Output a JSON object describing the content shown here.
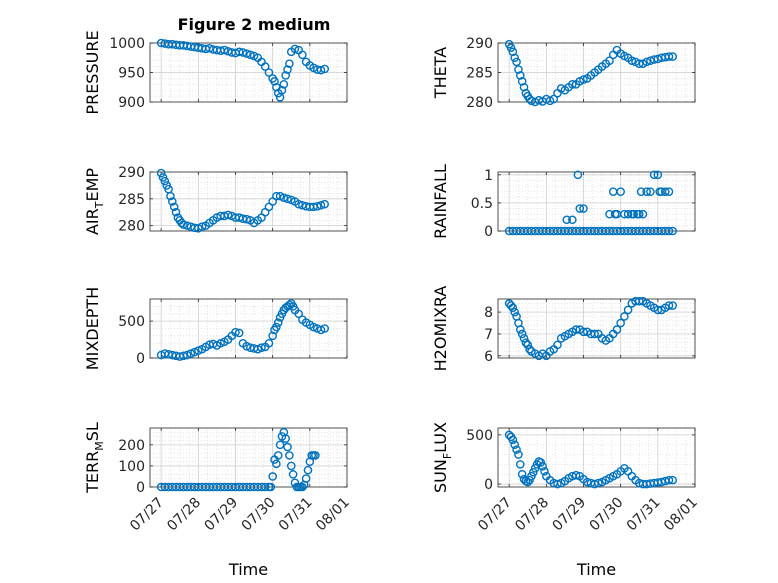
{
  "figure": {
    "title": "Figure 2 medium"
  },
  "colors": {
    "marker": "#0072bd",
    "axis": "#262626",
    "grid": "#dcdcdc"
  },
  "chart_data": [
    {
      "type": "scatter",
      "ylabel": "PRESSURE",
      "ylabel_sub": "",
      "ylabel_end": "",
      "ylim": [
        900,
        1000
      ],
      "yticks": [
        900,
        950,
        1000
      ],
      "ytick_labels": [
        "900",
        "950",
        "1000"
      ],
      "xlabel": "",
      "xticks_labeled": false,
      "x": [
        0.0,
        0.1,
        0.2,
        0.3,
        0.4,
        0.5,
        0.6,
        0.7,
        0.8,
        0.9,
        1.0,
        1.1,
        1.2,
        1.3,
        1.4,
        1.5,
        1.6,
        1.7,
        1.8,
        1.9,
        2.0,
        2.1,
        2.2,
        2.3,
        2.4,
        2.5,
        2.6,
        2.7,
        2.8,
        2.9,
        3.0,
        3.05,
        3.1,
        3.15,
        3.2,
        3.25,
        3.3,
        3.35,
        3.4,
        3.45,
        3.5,
        3.6,
        3.7,
        3.8,
        3.9,
        4.0,
        4.1,
        4.2,
        4.3,
        4.4
      ],
      "y": [
        1000,
        999,
        998,
        998,
        997,
        996,
        996,
        995,
        994,
        993,
        992,
        991,
        990,
        991,
        989,
        988,
        987,
        988,
        986,
        984,
        983,
        985,
        984,
        982,
        980,
        978,
        975,
        968,
        960,
        950,
        940,
        935,
        925,
        915,
        908,
        920,
        930,
        945,
        955,
        965,
        985,
        990,
        988,
        980,
        968,
        962,
        958,
        955,
        954,
        956
      ]
    },
    {
      "type": "scatter",
      "ylabel": "THETA",
      "ylabel_sub": "",
      "ylabel_end": "",
      "ylim": [
        280,
        290
      ],
      "yticks": [
        280,
        285,
        290
      ],
      "ytick_labels": [
        "280",
        "285",
        "290"
      ],
      "xlabel": "",
      "xticks_labeled": false,
      "x": [
        0.0,
        0.05,
        0.1,
        0.15,
        0.2,
        0.25,
        0.3,
        0.35,
        0.4,
        0.45,
        0.5,
        0.55,
        0.6,
        0.7,
        0.8,
        0.9,
        1.0,
        1.1,
        1.2,
        1.3,
        1.4,
        1.5,
        1.6,
        1.7,
        1.8,
        1.9,
        2.0,
        2.1,
        2.2,
        2.3,
        2.4,
        2.5,
        2.6,
        2.7,
        2.8,
        2.9,
        3.0,
        3.1,
        3.2,
        3.3,
        3.4,
        3.5,
        3.6,
        3.7,
        3.8,
        3.9,
        4.0,
        4.1,
        4.2,
        4.3,
        4.4
      ],
      "y": [
        289.8,
        289.2,
        288.5,
        287.5,
        286.8,
        285.5,
        284.5,
        283.5,
        282.5,
        281.5,
        281.0,
        280.5,
        280.2,
        280.0,
        280.3,
        280.1,
        280.5,
        280.2,
        280.5,
        281.5,
        282.3,
        282.0,
        282.5,
        283.0,
        283.0,
        283.5,
        283.8,
        284.0,
        284.5,
        285.0,
        285.5,
        286.0,
        286.5,
        287.0,
        288.0,
        288.8,
        288.2,
        287.8,
        287.5,
        287.0,
        286.8,
        286.5,
        286.5,
        286.8,
        287.0,
        287.2,
        287.3,
        287.5,
        287.6,
        287.7,
        287.7
      ]
    },
    {
      "type": "scatter",
      "ylabel": "AIR",
      "ylabel_sub": "T",
      "ylabel_end": "EMP",
      "ylim": [
        279,
        290
      ],
      "yticks": [
        280,
        285,
        290
      ],
      "ytick_labels": [
        "280",
        "285",
        "290"
      ],
      "xlabel": "",
      "xticks_labeled": false,
      "x": [
        0.0,
        0.05,
        0.1,
        0.15,
        0.2,
        0.25,
        0.3,
        0.35,
        0.4,
        0.45,
        0.5,
        0.55,
        0.6,
        0.7,
        0.8,
        0.9,
        1.0,
        1.1,
        1.2,
        1.3,
        1.4,
        1.5,
        1.6,
        1.7,
        1.8,
        1.9,
        2.0,
        2.1,
        2.2,
        2.3,
        2.4,
        2.5,
        2.6,
        2.7,
        2.8,
        2.9,
        3.0,
        3.1,
        3.2,
        3.3,
        3.4,
        3.5,
        3.6,
        3.7,
        3.8,
        3.9,
        4.0,
        4.1,
        4.2,
        4.3,
        4.4
      ],
      "y": [
        289.8,
        289.0,
        288.3,
        287.5,
        286.8,
        285.5,
        284.5,
        283.5,
        282.5,
        281.5,
        281.0,
        280.5,
        280.2,
        280.0,
        279.8,
        279.6,
        279.5,
        279.8,
        280.0,
        280.5,
        281.0,
        281.5,
        281.8,
        281.8,
        282.0,
        281.8,
        281.5,
        281.5,
        281.3,
        281.2,
        281.0,
        280.5,
        281.0,
        281.5,
        282.5,
        283.5,
        284.5,
        285.5,
        285.5,
        285.2,
        285.0,
        284.8,
        284.5,
        284.0,
        283.8,
        283.6,
        283.5,
        283.5,
        283.6,
        283.8,
        284.0
      ]
    },
    {
      "type": "scatter",
      "ylabel": "RAINFALL",
      "ylabel_sub": "",
      "ylabel_end": "",
      "ylim": [
        0,
        1.05
      ],
      "yticks": [
        0,
        0.5,
        1
      ],
      "ytick_labels": [
        "0",
        "0.5",
        "1"
      ],
      "xlabel": "",
      "xticks_labeled": false,
      "x": [
        0.0,
        0.1,
        0.2,
        0.3,
        0.4,
        0.5,
        0.6,
        0.7,
        0.8,
        0.9,
        1.0,
        1.1,
        1.2,
        1.3,
        1.4,
        1.5,
        1.6,
        1.7,
        1.8,
        1.9,
        2.0,
        2.1,
        2.2,
        2.3,
        2.4,
        2.5,
        2.6,
        2.7,
        2.8,
        2.9,
        3.0,
        3.1,
        3.2,
        3.3,
        3.4,
        3.5,
        3.6,
        3.7,
        3.8,
        3.9,
        4.0,
        4.1,
        4.2,
        4.3,
        4.4,
        1.55,
        1.7,
        1.85,
        1.9,
        2.0,
        2.7,
        2.8,
        2.85,
        2.9,
        3.0,
        3.1,
        3.2,
        3.3,
        3.35,
        3.45,
        3.5,
        3.55,
        3.6,
        3.7,
        3.8,
        3.9,
        4.0,
        4.05,
        4.1,
        4.2,
        4.3
      ],
      "y": [
        0,
        0,
        0,
        0,
        0,
        0,
        0,
        0,
        0,
        0,
        0,
        0,
        0,
        0,
        0,
        0,
        0,
        0,
        0,
        0,
        0,
        0,
        0,
        0,
        0,
        0,
        0,
        0,
        0,
        0,
        0,
        0,
        0,
        0,
        0,
        0,
        0,
        0,
        0,
        0,
        0,
        0,
        0,
        0,
        0,
        0.2,
        0.2,
        1.0,
        0.4,
        0.4,
        0.3,
        0.7,
        0.3,
        0.3,
        0.7,
        0.3,
        0.3,
        0.3,
        0.3,
        0.3,
        0.3,
        0.7,
        0.3,
        0.7,
        0.7,
        1.0,
        1.0,
        0.7,
        0.7,
        0.7,
        0.7
      ]
    },
    {
      "type": "scatter",
      "ylabel": "MIXDEPTH",
      "ylabel_sub": "",
      "ylabel_end": "",
      "ylim": [
        0,
        800
      ],
      "yticks": [
        0,
        500
      ],
      "ytick_labels": [
        "0",
        "500"
      ],
      "xlabel": "",
      "xticks_labeled": false,
      "x": [
        0.0,
        0.1,
        0.2,
        0.3,
        0.4,
        0.5,
        0.6,
        0.7,
        0.8,
        0.9,
        1.0,
        1.1,
        1.2,
        1.3,
        1.4,
        1.5,
        1.6,
        1.7,
        1.8,
        1.9,
        2.0,
        2.1,
        2.2,
        2.3,
        2.4,
        2.5,
        2.6,
        2.7,
        2.8,
        2.9,
        3.0,
        3.05,
        3.1,
        3.15,
        3.2,
        3.25,
        3.3,
        3.35,
        3.4,
        3.45,
        3.5,
        3.55,
        3.6,
        3.7,
        3.8,
        3.9,
        4.0,
        4.1,
        4.2,
        4.3,
        4.4
      ],
      "y": [
        40,
        60,
        50,
        40,
        30,
        20,
        30,
        40,
        60,
        80,
        100,
        120,
        150,
        180,
        190,
        170,
        200,
        220,
        250,
        300,
        350,
        340,
        200,
        160,
        140,
        130,
        120,
        140,
        150,
        200,
        300,
        380,
        420,
        480,
        550,
        600,
        650,
        680,
        700,
        720,
        740,
        700,
        650,
        600,
        520,
        480,
        450,
        420,
        400,
        380,
        400
      ]
    },
    {
      "type": "scatter",
      "ylabel": "H2OMIXRA",
      "ylabel_sub": "",
      "ylabel_end": "",
      "ylim": [
        5.9,
        8.6
      ],
      "yticks": [
        6,
        7,
        8
      ],
      "ytick_labels": [
        "6",
        "7",
        "8"
      ],
      "xlabel": "",
      "xticks_labeled": false,
      "x": [
        0.0,
        0.05,
        0.1,
        0.15,
        0.2,
        0.25,
        0.3,
        0.35,
        0.4,
        0.45,
        0.5,
        0.55,
        0.6,
        0.7,
        0.8,
        0.9,
        1.0,
        1.1,
        1.2,
        1.3,
        1.4,
        1.5,
        1.6,
        1.7,
        1.8,
        1.9,
        2.0,
        2.1,
        2.2,
        2.3,
        2.4,
        2.5,
        2.6,
        2.7,
        2.8,
        2.9,
        3.0,
        3.1,
        3.2,
        3.3,
        3.4,
        3.5,
        3.6,
        3.7,
        3.8,
        3.9,
        4.0,
        4.1,
        4.2,
        4.3,
        4.4
      ],
      "y": [
        8.4,
        8.3,
        8.2,
        8.0,
        7.8,
        7.5,
        7.2,
        7.0,
        6.8,
        6.6,
        6.5,
        6.3,
        6.2,
        6.1,
        6.0,
        6.1,
        6.0,
        6.2,
        6.3,
        6.5,
        6.8,
        6.9,
        7.0,
        7.1,
        7.2,
        7.2,
        7.1,
        7.1,
        7.0,
        7.0,
        7.0,
        6.8,
        6.7,
        6.8,
        7.0,
        7.2,
        7.5,
        7.8,
        8.1,
        8.4,
        8.5,
        8.5,
        8.5,
        8.4,
        8.3,
        8.2,
        8.1,
        8.1,
        8.2,
        8.3,
        8.3
      ]
    },
    {
      "type": "scatter",
      "ylabel": "TERR",
      "ylabel_sub": "M",
      "ylabel_end": "SL",
      "ylim": [
        0,
        280
      ],
      "yticks": [
        0,
        100,
        200
      ],
      "ytick_labels": [
        "0",
        "100",
        "200"
      ],
      "xlabel": "Time",
      "xticks_labeled": true,
      "x": [
        0.0,
        0.1,
        0.2,
        0.3,
        0.4,
        0.5,
        0.6,
        0.7,
        0.8,
        0.9,
        1.0,
        1.1,
        1.2,
        1.3,
        1.4,
        1.5,
        1.6,
        1.7,
        1.8,
        1.9,
        2.0,
        2.1,
        2.2,
        2.3,
        2.4,
        2.5,
        2.6,
        2.7,
        2.8,
        2.9,
        2.95,
        3.0,
        3.05,
        3.1,
        3.15,
        3.2,
        3.25,
        3.3,
        3.35,
        3.4,
        3.45,
        3.5,
        3.55,
        3.6,
        3.65,
        3.7,
        3.75,
        3.8,
        3.85,
        3.9,
        3.95,
        4.0,
        4.05,
        4.1,
        4.15
      ],
      "y": [
        0,
        0,
        0,
        0,
        0,
        0,
        0,
        0,
        0,
        0,
        0,
        0,
        0,
        0,
        0,
        0,
        0,
        0,
        0,
        0,
        0,
        0,
        0,
        0,
        0,
        0,
        0,
        0,
        0,
        0,
        0,
        50,
        130,
        110,
        150,
        200,
        240,
        260,
        230,
        190,
        150,
        100,
        60,
        20,
        0,
        0,
        0,
        0,
        10,
        40,
        80,
        120,
        150,
        150,
        150
      ]
    },
    {
      "type": "scatter",
      "ylabel": "SUN",
      "ylabel_sub": "F",
      "ylabel_end": "LUX",
      "ylim": [
        -30,
        570
      ],
      "yticks": [
        0,
        500
      ],
      "ytick_labels": [
        "0",
        "500"
      ],
      "xlabel": "Time",
      "xticks_labeled": true,
      "x": [
        0.0,
        0.05,
        0.1,
        0.15,
        0.2,
        0.25,
        0.3,
        0.35,
        0.4,
        0.45,
        0.5,
        0.55,
        0.6,
        0.65,
        0.7,
        0.75,
        0.8,
        0.85,
        0.9,
        0.95,
        1.0,
        1.1,
        1.2,
        1.3,
        1.4,
        1.5,
        1.6,
        1.7,
        1.8,
        1.9,
        2.0,
        2.1,
        2.2,
        2.3,
        2.4,
        2.5,
        2.6,
        2.7,
        2.8,
        2.9,
        3.0,
        3.1,
        3.2,
        3.3,
        3.4,
        3.5,
        3.6,
        3.7,
        3.8,
        3.9,
        4.0,
        4.1,
        4.2,
        4.3,
        4.4
      ],
      "y": [
        500,
        480,
        450,
        400,
        350,
        300,
        200,
        100,
        50,
        30,
        20,
        40,
        80,
        120,
        160,
        200,
        230,
        220,
        180,
        130,
        80,
        40,
        10,
        0,
        10,
        30,
        60,
        80,
        90,
        80,
        50,
        20,
        10,
        0,
        10,
        20,
        40,
        60,
        80,
        100,
        130,
        160,
        130,
        80,
        40,
        10,
        0,
        0,
        5,
        10,
        15,
        20,
        30,
        40,
        40
      ]
    }
  ],
  "x_axis": {
    "range": [
      -0.3,
      5.0
    ],
    "ticks": [
      0,
      1,
      2,
      3,
      4,
      5
    ],
    "tick_labels": [
      "07/27",
      "07/28",
      "07/29",
      "07/30",
      "07/31",
      "08/01"
    ]
  }
}
